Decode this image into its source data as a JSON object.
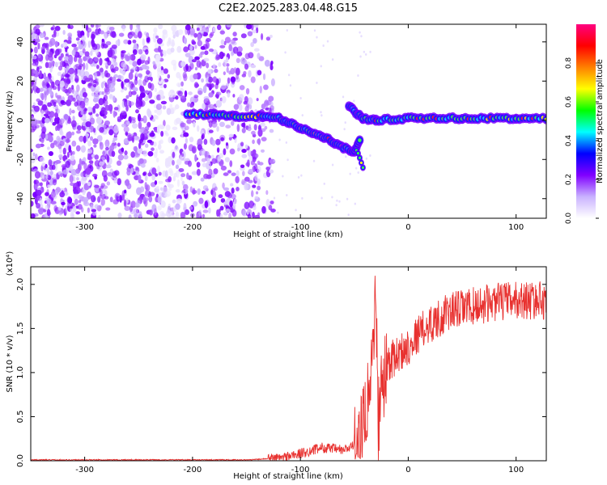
{
  "title": "C2E2.2025.283.04.48.G15",
  "chart_data": [
    {
      "type": "heatmap",
      "xlabel": "Height of straight line (km)",
      "ylabel": "Frequency (Hz)",
      "xlim": [
        -350,
        128
      ],
      "ylim": [
        -50,
        49
      ],
      "xticks": [
        -300,
        -200,
        -100,
        0,
        100
      ],
      "yticks": [
        -40,
        -20,
        0,
        20,
        40
      ],
      "colorbar": {
        "label": "Normalized spectral amplitude",
        "range": [
          0,
          1
        ],
        "ticks": [
          0.0,
          0.2,
          0.4,
          0.6,
          0.8
        ],
        "tick_labels": [
          "0.0",
          "0.2",
          "0.4",
          "0.6",
          "0.8"
        ],
        "colors": [
          "#ffffff",
          "#c9b2ff",
          "#8000ff",
          "#0000ff",
          "#00ffff",
          "#00ff00",
          "#ffff00",
          "#ff8000",
          "#ff0000",
          "#ff0080"
        ]
      },
      "ridge": [
        {
          "x": -205,
          "y": 3
        },
        {
          "x": -180,
          "y": 3
        },
        {
          "x": -160,
          "y": 2
        },
        {
          "x": -135,
          "y": 2
        },
        {
          "x": -120,
          "y": 1
        },
        {
          "x": -100,
          "y": -4
        },
        {
          "x": -80,
          "y": -8
        },
        {
          "x": -60,
          "y": -14
        },
        {
          "x": -50,
          "y": -16
        },
        {
          "x": -45,
          "y": -10
        },
        {
          "x": -55,
          "y": 7
        },
        {
          "x": -42,
          "y": 1
        },
        {
          "x": -30,
          "y": 0
        },
        {
          "x": 0,
          "y": 1
        },
        {
          "x": 50,
          "y": 1
        },
        {
          "x": 100,
          "y": 1
        },
        {
          "x": 128,
          "y": 1
        }
      ]
    },
    {
      "type": "line",
      "xlabel": "Height of straight line (km)",
      "ylabel": "SNR (10 * v/v)",
      "y_multiplier_label": "(x10⁴)",
      "xlim": [
        -350,
        128
      ],
      "ylim": [
        0,
        2.2
      ],
      "xticks": [
        -300,
        -200,
        -100,
        0,
        100
      ],
      "yticks": [
        0.0,
        0.5,
        1.0,
        1.5,
        2.0
      ],
      "ytick_labels": [
        "0.0",
        "0.5",
        "1.0",
        "1.5",
        "2.0"
      ],
      "color": "#e8312f",
      "series": [
        {
          "values_outline": [
            {
              "x": -350,
              "y": 0.01
            },
            {
              "x": -200,
              "y": 0.01
            },
            {
              "x": -150,
              "y": 0.01
            },
            {
              "x": -120,
              "y": 0.03
            },
            {
              "x": -100,
              "y": 0.08
            },
            {
              "x": -80,
              "y": 0.15
            },
            {
              "x": -60,
              "y": 0.12
            },
            {
              "x": -45,
              "y": 0.2
            },
            {
              "x": -38,
              "y": 0.7
            },
            {
              "x": -33,
              "y": 1.2
            },
            {
              "x": -30,
              "y": 2.0
            },
            {
              "x": -28,
              "y": 0.5
            },
            {
              "x": -25,
              "y": 0.9
            },
            {
              "x": -20,
              "y": 1.1
            },
            {
              "x": -10,
              "y": 1.2
            },
            {
              "x": 0,
              "y": 1.3
            },
            {
              "x": 10,
              "y": 1.45
            },
            {
              "x": 20,
              "y": 1.55
            },
            {
              "x": 40,
              "y": 1.7
            },
            {
              "x": 60,
              "y": 1.75
            },
            {
              "x": 80,
              "y": 1.8
            },
            {
              "x": 100,
              "y": 1.82
            },
            {
              "x": 128,
              "y": 1.82
            }
          ]
        }
      ]
    }
  ]
}
